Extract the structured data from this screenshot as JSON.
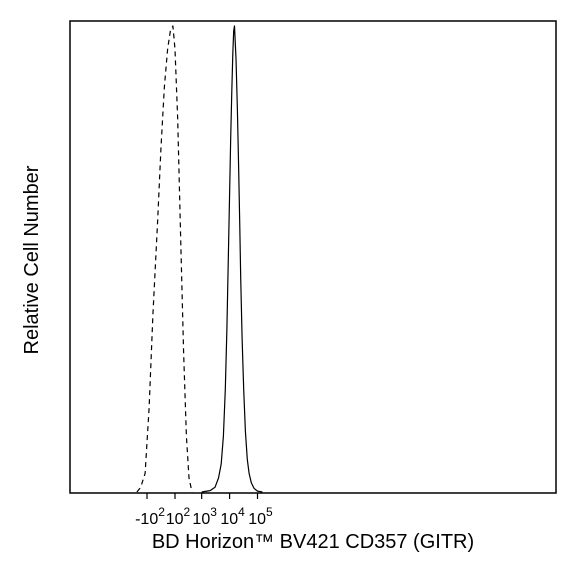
{
  "chart_data": {
    "type": "line",
    "title": "",
    "xlabel": "BD Horizon™ BV421 CD357 (GITR)",
    "ylabel": "Relative Cell Number",
    "x_scale": "biexponential",
    "x_ticks": [
      {
        "value": -100,
        "base": "-10",
        "exp": "2"
      },
      {
        "value": 100,
        "base": "10",
        "exp": "2"
      },
      {
        "value": 1000,
        "base": "10",
        "exp": "3"
      },
      {
        "value": 10000,
        "base": "10",
        "exp": "4"
      },
      {
        "value": 100000,
        "base": "10",
        "exp": "5"
      }
    ],
    "grid": false,
    "legend": "none",
    "series": [
      {
        "style": "dashed",
        "color": "#000000",
        "x": [
          -250,
          -180,
          -120,
          -80,
          -50,
          -20,
          0,
          20,
          40,
          60,
          80,
          100,
          130,
          170,
          220,
          280,
          350,
          450
        ],
        "y": [
          0.0,
          0.01,
          0.04,
          0.18,
          0.38,
          0.58,
          0.74,
          0.87,
          0.95,
          0.99,
          1.0,
          0.95,
          0.8,
          0.55,
          0.3,
          0.12,
          0.03,
          0.0
        ]
      },
      {
        "style": "solid",
        "color": "#000000",
        "x": [
          1000,
          2000,
          3000,
          4000,
          5000,
          6000,
          7000,
          8000,
          9000,
          10000,
          11000,
          12000,
          13000,
          14000,
          15000,
          17000,
          19000,
          21000,
          23000,
          25000,
          28000,
          32000,
          37000,
          43000,
          50000,
          60000,
          75000,
          100000,
          150000
        ],
        "y": [
          0.0,
          0.003,
          0.01,
          0.03,
          0.06,
          0.12,
          0.22,
          0.35,
          0.5,
          0.64,
          0.76,
          0.86,
          0.94,
          0.99,
          1.0,
          0.93,
          0.82,
          0.7,
          0.58,
          0.46,
          0.33,
          0.22,
          0.13,
          0.07,
          0.04,
          0.02,
          0.008,
          0.002,
          0.0
        ]
      }
    ]
  }
}
